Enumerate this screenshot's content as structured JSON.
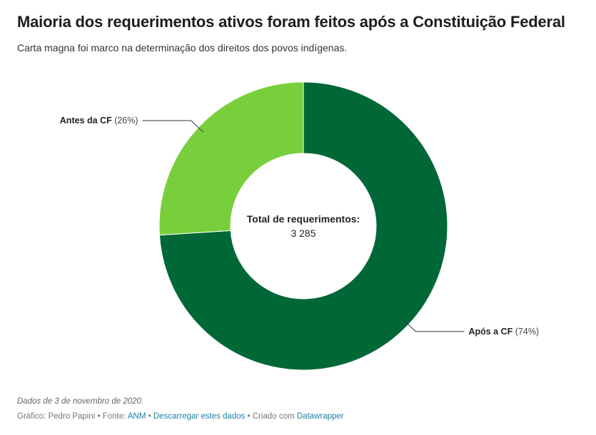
{
  "header": {
    "title": "Maioria dos requerimentos ativos foram feitos após a Constituição Federal",
    "subtitle": "Carta magna foi marco na determinação dos direitos dos povos indígenas."
  },
  "chart_data": {
    "type": "pie",
    "donut": true,
    "slices": [
      {
        "name": "Após a CF",
        "value": 74,
        "value_label": "(74%)",
        "color": "#006837"
      },
      {
        "name": "Antes da CF",
        "value": 26,
        "value_label": "(26%)",
        "color": "#78cf3b"
      }
    ],
    "center_label": "Total de requerimentos:",
    "center_value": "3 285"
  },
  "footer": {
    "notes": "Dados de 3 de novembro de 2020.",
    "credit_prefix": "Gráfico: Pedro Papini • Fonte: ",
    "source_link": "ANM",
    "separator": " • ",
    "download_link": "Descarregar estes dados",
    "created_prefix": " • Criado com ",
    "tool_link": "Datawrapper"
  }
}
